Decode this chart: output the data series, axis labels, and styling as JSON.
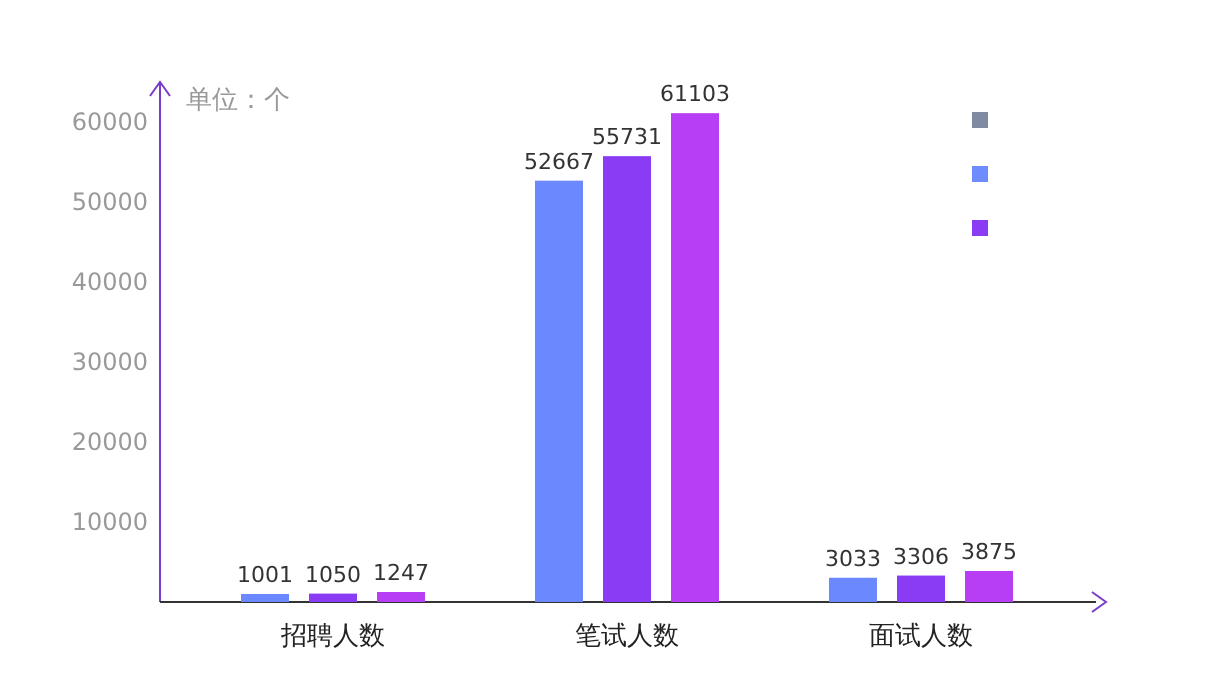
{
  "chart_data": {
    "type": "bar",
    "ylabel": "单位：个",
    "categories": [
      "招聘人数",
      "笔试人数",
      "面试人数"
    ],
    "series": [
      {
        "color": "#6b88ff",
        "values": [
          1001,
          52667,
          3033
        ]
      },
      {
        "color": "#8a3cf5",
        "values": [
          1050,
          55731,
          3306
        ]
      },
      {
        "color": "#b83ef5",
        "values": [
          1247,
          61103,
          3875
        ]
      }
    ],
    "ylim": [
      0,
      65000
    ],
    "yticks": [
      10000,
      20000,
      30000,
      40000,
      50000,
      60000
    ],
    "data_labels": true,
    "grid": false
  }
}
